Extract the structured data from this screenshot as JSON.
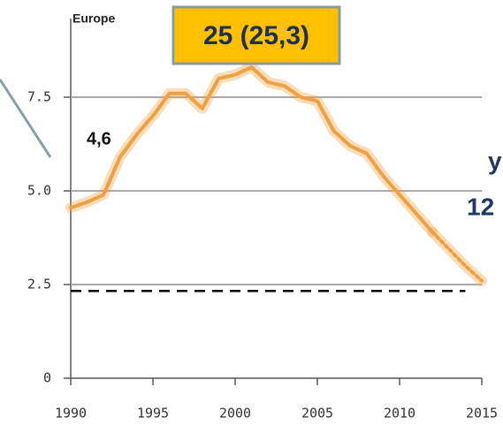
{
  "chart_data": {
    "type": "line",
    "title": "Europe",
    "x": [
      1990,
      1991,
      1992,
      1993,
      1994,
      1995,
      1996,
      1997,
      1998,
      1999,
      2000,
      2001,
      2002,
      2003,
      2004,
      2005,
      2006,
      2007,
      2008,
      2009,
      2010,
      2011,
      2012,
      2013,
      2014,
      2015
    ],
    "series": [
      {
        "color": "#f0a040",
        "dash": false,
        "values": [
          4.55,
          4.7,
          4.9,
          5.9,
          6.5,
          7.0,
          7.6,
          7.6,
          7.2,
          8.0,
          8.1,
          8.3,
          7.9,
          7.8,
          7.5,
          7.4,
          6.6,
          6.2,
          6.0,
          5.4,
          4.9,
          4.4,
          3.9,
          null,
          null,
          null
        ]
      },
      {
        "color": "#f0a040",
        "dash": true,
        "values": [
          null,
          null,
          null,
          null,
          null,
          null,
          null,
          null,
          null,
          null,
          null,
          null,
          null,
          null,
          null,
          null,
          null,
          null,
          null,
          null,
          null,
          null,
          3.9,
          3.45,
          3.0,
          2.6
        ]
      }
    ],
    "reference_line": {
      "value": 2.33,
      "x": [
        1990,
        2014
      ],
      "color": "#000000"
    },
    "xlim": [
      1990,
      2015
    ],
    "xticks": [
      1990,
      1995,
      2000,
      2005,
      2010,
      2015
    ],
    "ylim": [
      0,
      9.6
    ],
    "yticks": [
      0,
      2.5,
      {
        "value": 5,
        "label": "5.0"
      },
      7.5
    ],
    "grid": true,
    "annotations": [
      "25 (25,3)",
      "4,6",
      "y",
      "12"
    ]
  }
}
